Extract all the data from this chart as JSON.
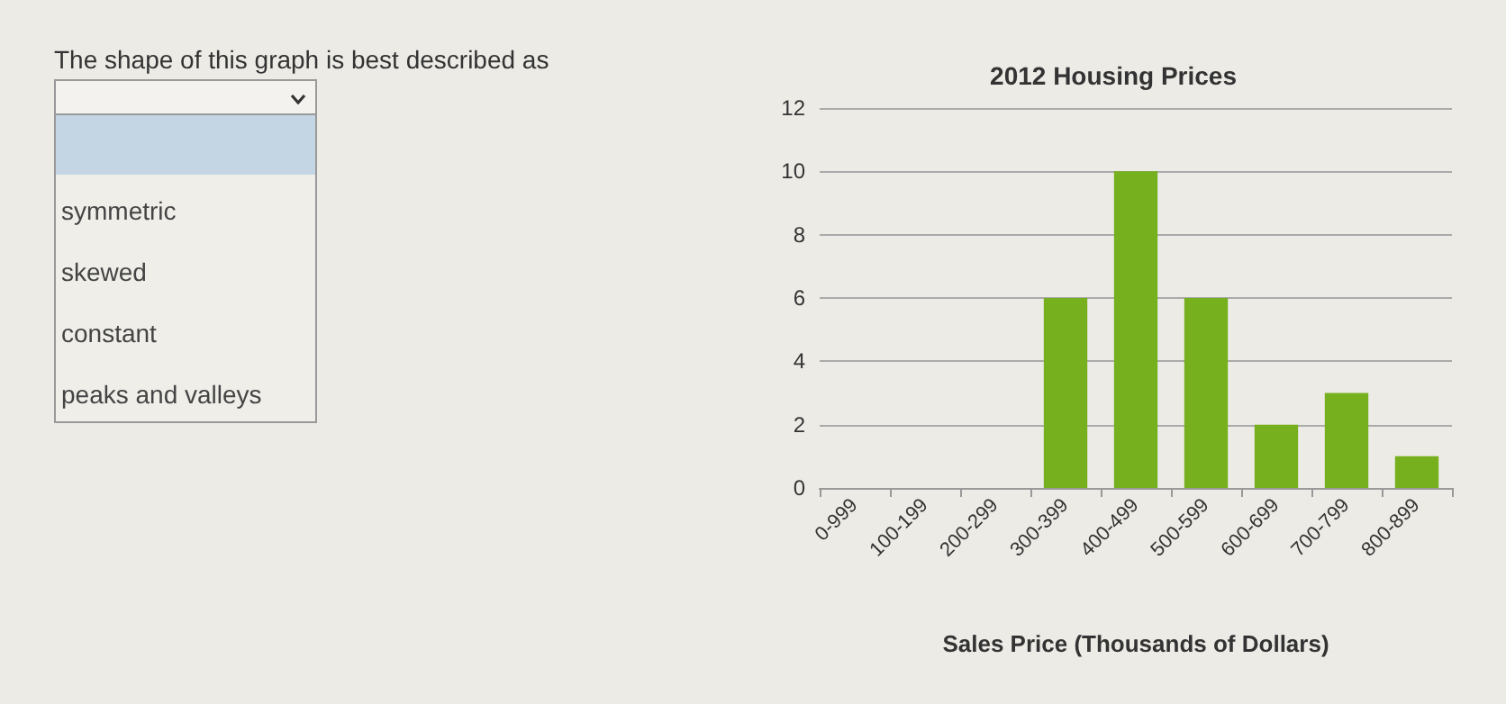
{
  "chart_data": {
    "type": "bar",
    "title": "2012 Housing Prices",
    "xlabel": "Sales Price (Thousands of Dollars)",
    "categories": [
      "0-999",
      "100-199",
      "200-299",
      "300-399",
      "400-499",
      "500-599",
      "600-699",
      "700-799",
      "800-899"
    ],
    "values": [
      0,
      0,
      0,
      6,
      10,
      6,
      2,
      3,
      1
    ],
    "color": "#76b01e",
    "ylim": [
      0,
      12
    ],
    "yticks": [
      0,
      2,
      4,
      6,
      8,
      10,
      12
    ],
    "grid": "y",
    "annotations": [
      "The shape of this graph is best described as",
      "symmetric",
      "skewed",
      "constant",
      "peaks and valleys"
    ]
  }
}
